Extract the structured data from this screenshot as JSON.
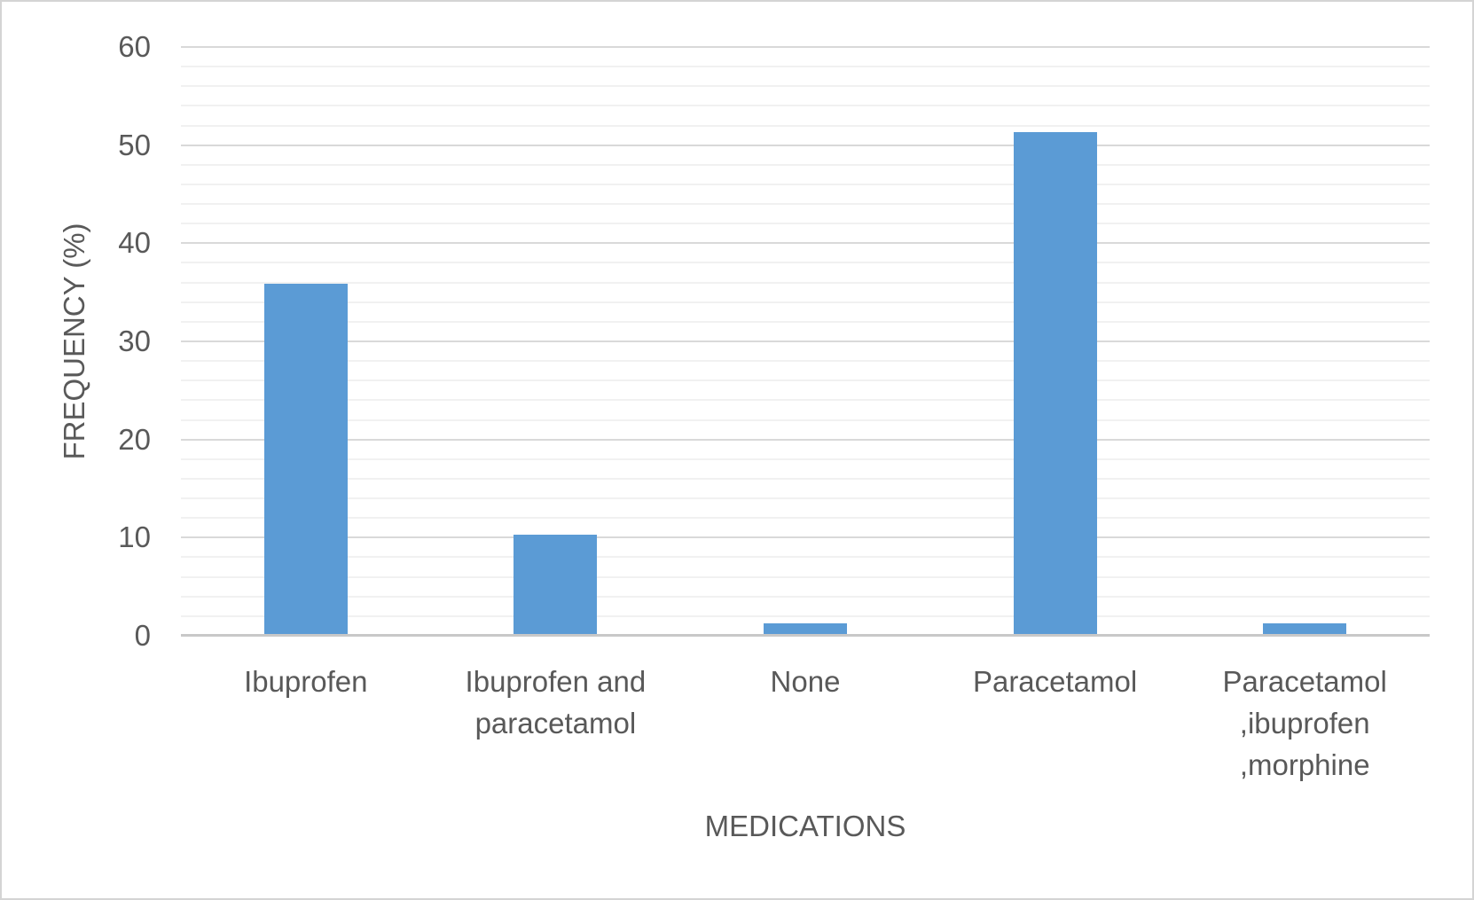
{
  "chart_data": {
    "type": "bar",
    "title": "",
    "xlabel": "MEDICATIONS",
    "ylabel": "FREQUENCY (%)",
    "categories": [
      "Ibuprofen",
      "Ibuprofen and\nparacetamol",
      "None",
      "Paracetamol",
      "Paracetamol\n,ibuprofen\n,morphine"
    ],
    "values": [
      35.9,
      10.3,
      1.3,
      51.3,
      1.3
    ],
    "ylim": [
      0,
      60
    ],
    "ytick_step": 10,
    "minor_grid_step": 2,
    "grid": true,
    "legend": "none",
    "bar_color": "#5B9BD5",
    "text_color": "#595959",
    "major_grid_color": "#D9D9D9",
    "minor_grid_color": "#F1F1F1",
    "axis_line_color": "#C8C8C8"
  }
}
